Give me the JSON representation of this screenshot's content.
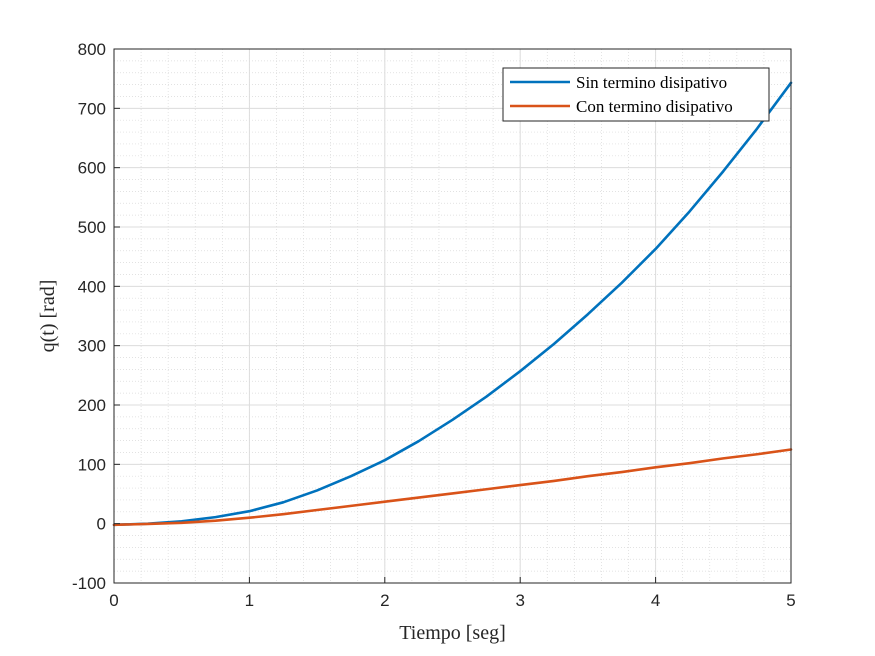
{
  "chart_data": {
    "type": "line",
    "title": "",
    "xlabel": "Tiempo [seg]",
    "ylabel": "q(t) [rad]",
    "xlim": [
      0,
      5
    ],
    "ylim": [
      -100,
      800
    ],
    "xticks": [
      0,
      1,
      2,
      3,
      4,
      5
    ],
    "yticks": [
      -100,
      0,
      100,
      200,
      300,
      400,
      500,
      600,
      700,
      800
    ],
    "grid": true,
    "minor_grid": true,
    "legend_position": "top-right",
    "series": [
      {
        "name": "Sin termino disipativo",
        "color": "#0072BD",
        "x": [
          0,
          0.25,
          0.5,
          0.75,
          1,
          1.25,
          1.5,
          1.75,
          2,
          2.25,
          2.5,
          2.75,
          3,
          3.25,
          3.5,
          3.75,
          4,
          4.25,
          4.5,
          4.75,
          5
        ],
        "y": [
          -2,
          0,
          4,
          11,
          21,
          36,
          56,
          80,
          107,
          139,
          175,
          214,
          257,
          303,
          353,
          406,
          463,
          526,
          594,
          666,
          743
        ]
      },
      {
        "name": "Con termino disipativo",
        "color": "#D95319",
        "x": [
          0,
          0.25,
          0.5,
          0.75,
          1,
          1.25,
          1.5,
          1.75,
          2,
          2.25,
          2.5,
          2.75,
          3,
          3.25,
          3.5,
          3.75,
          4,
          4.25,
          4.5,
          4.75,
          5
        ],
        "y": [
          -2,
          -0.5,
          1.5,
          5,
          10,
          16,
          23,
          30,
          37,
          44,
          51,
          58,
          65,
          72,
          80,
          87,
          95,
          102,
          110,
          117,
          125
        ]
      }
    ]
  }
}
